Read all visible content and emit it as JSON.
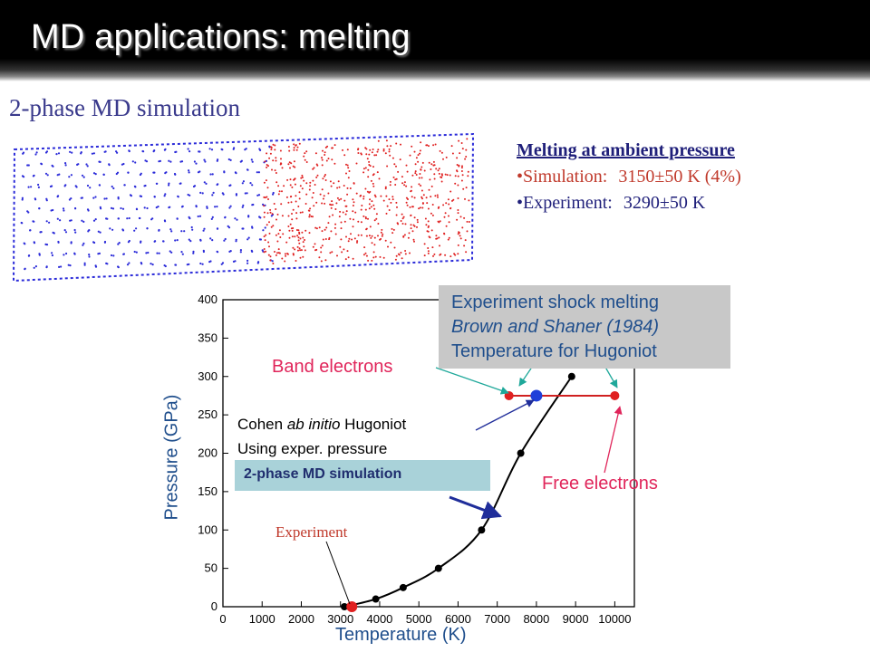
{
  "title": "MD applications: melting",
  "subtitle": "2-phase MD simulation",
  "melting": {
    "heading": "Melting at ambient pressure",
    "simulation_label": "•Simulation:",
    "simulation_value": "3150±50 K (4%)",
    "experiment_label": "•Experiment:",
    "experiment_value": "3290±50 K"
  },
  "annotations": {
    "exp_shock_line1": "Experiment shock melting",
    "exp_shock_line2": "Brown and Shaner (1984)",
    "exp_shock_line3": "Temperature for Hugoniot",
    "band_electrons": "Band electrons",
    "free_electrons": "Free electrons",
    "cohen_pre": "Cohen ",
    "cohen_italic": "ab initio",
    "cohen_post": " Hugoniot",
    "using_pressure": "Using exper. pressure",
    "two_phase_box": "2-phase MD simulation",
    "experiment": "Experiment"
  },
  "colors": {
    "solid_atoms": "#2b2bd9",
    "liquid_atoms": "#e02020",
    "experiment_marker": "#e02020",
    "hugoniot_point": "#1f3fd9",
    "curve": "#000000"
  },
  "chart_data": {
    "type": "scatter",
    "xlabel": "Temperature (K)",
    "ylabel": "Pressure (GPa)",
    "xlim": [
      0,
      10500
    ],
    "ylim": [
      0,
      400
    ],
    "xticks": [
      0,
      1000,
      2000,
      3000,
      4000,
      5000,
      6000,
      7000,
      8000,
      9000,
      10000
    ],
    "yticks": [
      0,
      50,
      100,
      150,
      200,
      250,
      300,
      350,
      400
    ],
    "series": [
      {
        "x": [
          3100,
          3900,
          4600,
          5500,
          6600,
          7600,
          8900
        ],
        "y": [
          0,
          10,
          25,
          50,
          100,
          200,
          300
        ]
      }
    ],
    "experiment_point": {
      "x": 3290,
      "y": 0
    },
    "hugoniot_points": [
      {
        "x": 7300,
        "y": 275
      },
      {
        "x": 8000,
        "y": 275
      },
      {
        "x": 10000,
        "y": 275
      }
    ]
  }
}
